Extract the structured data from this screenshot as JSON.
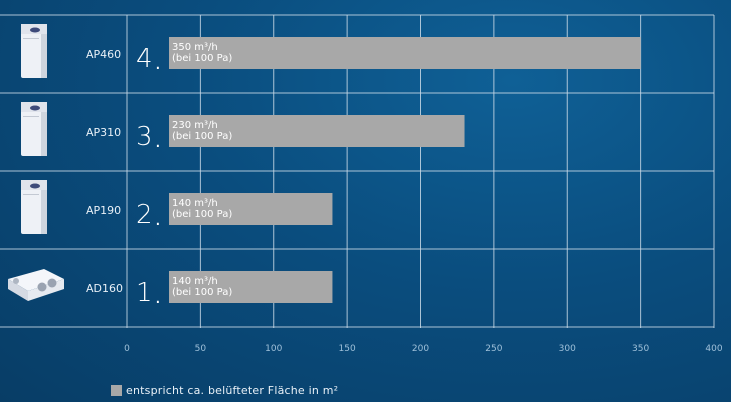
{
  "chart_data": {
    "type": "bar",
    "orientation": "horizontal",
    "categories": [
      "AP460",
      "AP310",
      "AP190",
      "AD160"
    ],
    "ranks": [
      "4",
      "3",
      "2",
      "1"
    ],
    "values": [
      350,
      230,
      140,
      140
    ],
    "bar_labels": [
      [
        "350 m³/h",
        "(bei 100 Pa)"
      ],
      [
        "230 m³/h",
        "(bei 100 Pa)"
      ],
      [
        "140 m³/h",
        "(bei 100 Pa)"
      ],
      [
        "140 m³/h",
        "(bei 100 Pa)"
      ]
    ],
    "xlim": [
      0,
      400
    ],
    "x_ticks": [
      0,
      50,
      100,
      150,
      200,
      250,
      300,
      350,
      400
    ],
    "grid": true,
    "bar_color": "#a8a8a8",
    "grid_color": "#c9d9e6"
  },
  "product_icons": [
    "unit-ap460-icon",
    "unit-ap310-icon",
    "unit-ap190-icon",
    "unit-ad160-icon"
  ],
  "legend": {
    "label": "entspricht ca. belüfteter Fläche in m²",
    "color": "#a8a8a8"
  }
}
